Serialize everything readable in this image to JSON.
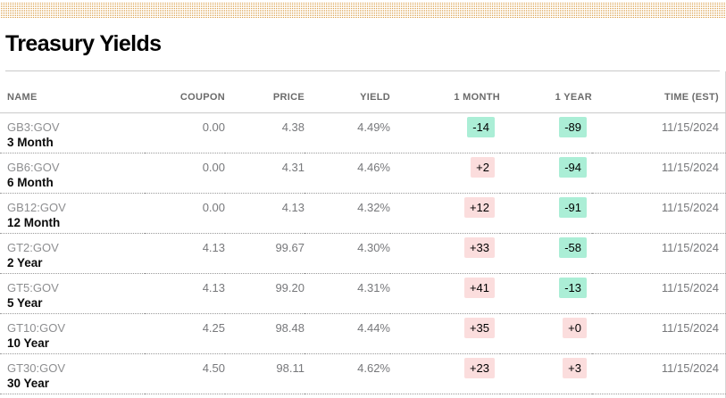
{
  "page": {
    "title": "Treasury Yields"
  },
  "table": {
    "columns": [
      "NAME",
      "COUPON",
      "PRICE",
      "YIELD",
      "1 MONTH",
      "1 YEAR",
      "TIME (EST)"
    ],
    "rows": [
      {
        "ticker": "GB3:GOV",
        "name": "3 Month",
        "coupon": "0.00",
        "price": "4.38",
        "yield": "4.49%",
        "one_month": "-14",
        "one_year": "-89",
        "time": "11/15/2024"
      },
      {
        "ticker": "GB6:GOV",
        "name": "6 Month",
        "coupon": "0.00",
        "price": "4.31",
        "yield": "4.46%",
        "one_month": "+2",
        "one_year": "-94",
        "time": "11/15/2024"
      },
      {
        "ticker": "GB12:GOV",
        "name": "12 Month",
        "coupon": "0.00",
        "price": "4.13",
        "yield": "4.32%",
        "one_month": "+12",
        "one_year": "-91",
        "time": "11/15/2024"
      },
      {
        "ticker": "GT2:GOV",
        "name": "2 Year",
        "coupon": "4.13",
        "price": "99.67",
        "yield": "4.30%",
        "one_month": "+33",
        "one_year": "-58",
        "time": "11/15/2024"
      },
      {
        "ticker": "GT5:GOV",
        "name": "5 Year",
        "coupon": "4.13",
        "price": "99.20",
        "yield": "4.31%",
        "one_month": "+41",
        "one_year": "-13",
        "time": "11/15/2024"
      },
      {
        "ticker": "GT10:GOV",
        "name": "10 Year",
        "coupon": "4.25",
        "price": "98.48",
        "yield": "4.44%",
        "one_month": "+35",
        "one_year": "+0",
        "time": "11/15/2024"
      },
      {
        "ticker": "GT30:GOV",
        "name": "30 Year",
        "coupon": "4.50",
        "price": "98.11",
        "yield": "4.62%",
        "one_month": "+23",
        "one_year": "+3",
        "time": "11/15/2024"
      }
    ]
  },
  "colors": {
    "band_dot": "#d99c43",
    "chip_positive_bg": "#fbdddd",
    "chip_negative_bg": "#abeed6",
    "rule": "#c9c9c9"
  }
}
